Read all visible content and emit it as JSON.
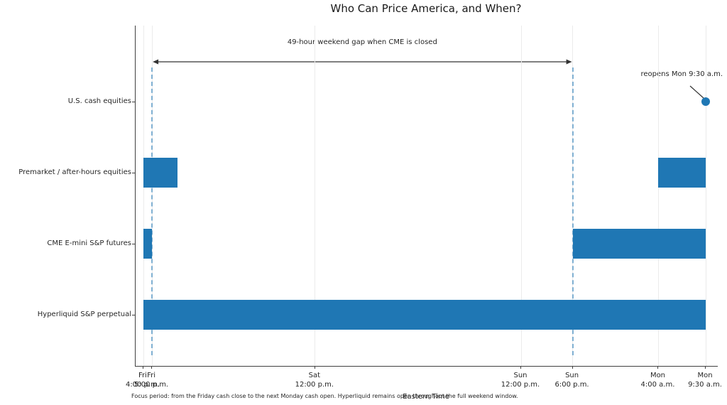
{
  "title": "Who Can Price America, and When?",
  "xlabel": "Eastern Time",
  "footnote": "Focus period: from the Friday cash close to the next Monday cash open. Hyperliquid remains open throughout the full weekend window.",
  "colors": {
    "bar": "#1f77b4",
    "vline": "#1f77b4",
    "grid": "#ebebeb",
    "axis": "#404040",
    "text": "#262626"
  },
  "chart_data": {
    "type": "bar",
    "subtype": "horizontal-gantt-timeline",
    "title": "Who Can Price America, and When?",
    "xlabel": "Eastern Time",
    "x_unit": "hours after Fri 4:00 p.m. ET",
    "xlim": [
      -0.9,
      67
    ],
    "grid": "vertical-on",
    "x_ticks": [
      {
        "hours": 0,
        "day": "Fri",
        "time": "4:00 p.m."
      },
      {
        "hours": 1,
        "day": "Fri",
        "time": "5:00 p.m."
      },
      {
        "hours": 20,
        "day": "Sat",
        "time": "12:00 p.m."
      },
      {
        "hours": 44,
        "day": "Sun",
        "time": "12:00 p.m."
      },
      {
        "hours": 50,
        "day": "Sun",
        "time": "6:00 p.m."
      },
      {
        "hours": 60,
        "day": "Mon",
        "time": "4:00 a.m."
      },
      {
        "hours": 65.5,
        "day": "Mon",
        "time": "9:30 a.m."
      }
    ],
    "rows": [
      {
        "label": "U.S. cash equities",
        "segments": [],
        "marker": {
          "hours": 65.5,
          "label": "reopens Mon 9:30 a.m."
        }
      },
      {
        "label": "Premarket / after-hours equities",
        "segments": [
          [
            0,
            4
          ],
          [
            60,
            65.5
          ]
        ]
      },
      {
        "label": "CME E-mini S&P futures",
        "segments": [
          [
            0,
            1
          ],
          [
            50,
            65.5
          ]
        ]
      },
      {
        "label": "Hyperliquid S&P perpetual",
        "segments": [
          [
            0,
            65.5
          ]
        ]
      }
    ],
    "vlines_hours": [
      1,
      50
    ],
    "gap_annotation": {
      "from_hours": 1,
      "to_hours": 50,
      "label": "49-hour weekend gap when CME is closed"
    }
  }
}
